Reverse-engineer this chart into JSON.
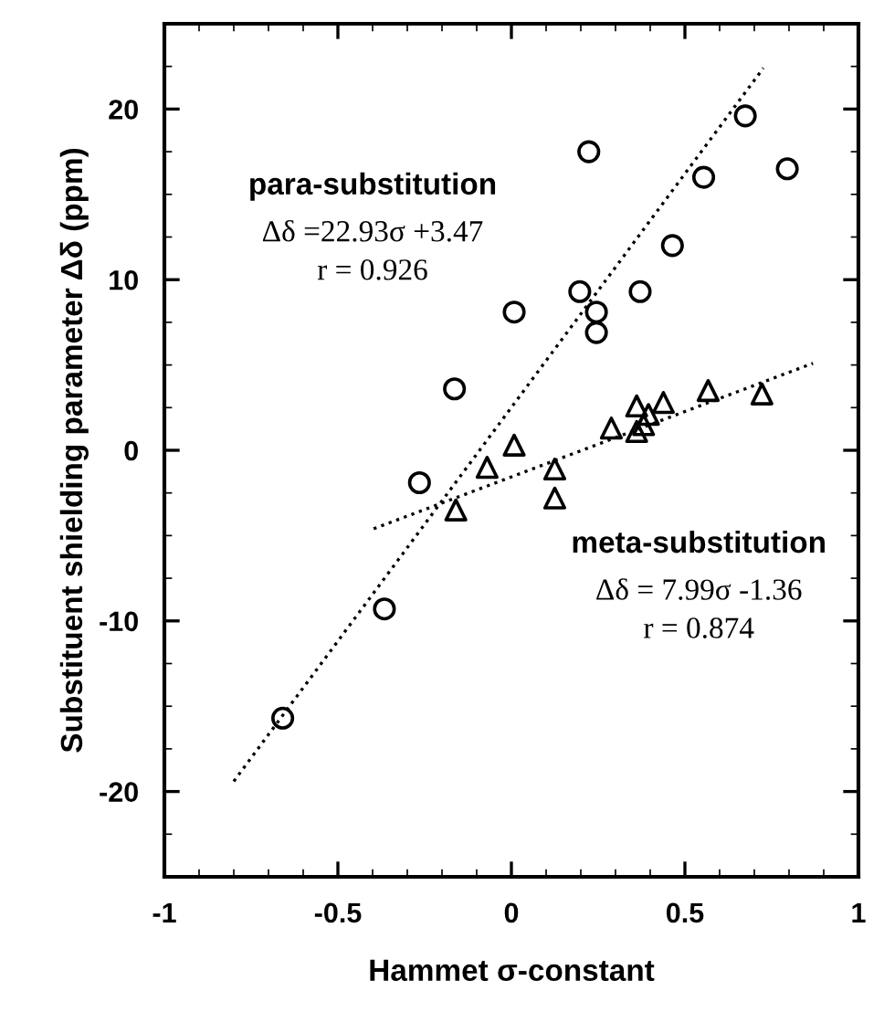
{
  "chart_data": {
    "type": "scatter",
    "xlabel": "Hammet σ-constant",
    "ylabel": "Substituent shielding parameter Δδ (ppm)",
    "xlim": [
      -1,
      1
    ],
    "ylim": [
      -25,
      25
    ],
    "xticks": [
      -1,
      -0.5,
      0,
      0.5,
      1
    ],
    "yticks": [
      -20,
      -10,
      0,
      10,
      20
    ],
    "grid": false,
    "legend": false,
    "series": [
      {
        "marker": "circle",
        "color": "#000000",
        "x": [
          0.674,
          0.223,
          0.554,
          0.795,
          0.464,
          0.197,
          0.371,
          0.245,
          0.245,
          0.008,
          -0.164,
          -0.265,
          -0.366,
          -0.659
        ],
        "values": [
          19.6,
          17.5,
          16.0,
          16.5,
          12.0,
          9.3,
          9.3,
          8.1,
          6.9,
          8.1,
          3.6,
          -1.9,
          -9.3,
          -15.7
        ]
      },
      {
        "marker": "triangle",
        "color": "#000000",
        "x": [
          0.008,
          -0.07,
          0.125,
          0.125,
          -0.16,
          0.288,
          0.361,
          0.438,
          0.395,
          0.381,
          0.361,
          0.567,
          0.722
        ],
        "values": [
          0.3,
          -1.0,
          -1.1,
          -2.8,
          -3.5,
          1.3,
          2.6,
          2.8,
          2.1,
          1.5,
          1.1,
          3.5,
          3.3
        ]
      },
      {
        "type": "line",
        "line_style": "dotted",
        "color": "#000000",
        "x": [
          -0.8,
          0.726
        ],
        "values": [
          -19.4,
          22.4
        ]
      },
      {
        "type": "line",
        "line_style": "dotted",
        "color": "#000000",
        "x": [
          -0.397,
          0.869
        ],
        "values": [
          -4.6,
          5.1
        ]
      }
    ],
    "annotations": [
      "para-substitution",
      "Δδ =22.93σ +3.47",
      "r = 0.926",
      "meta-substitution",
      "Δδ = 7.99σ -1.36",
      "r = 0.874"
    ]
  }
}
